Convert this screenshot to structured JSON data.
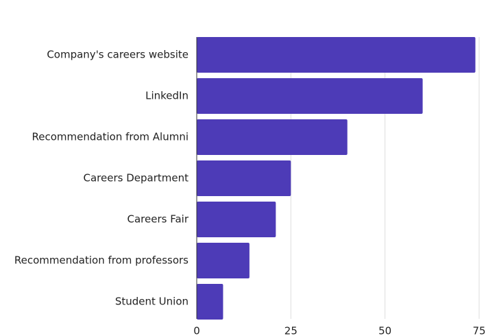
{
  "chart_data": {
    "type": "bar",
    "orientation": "horizontal",
    "categories": [
      "Company's careers website",
      "LinkedIn",
      "Recommendation from Alumni",
      "Careers Department",
      "Careers Fair",
      "Recommendation from professors",
      "Student Union"
    ],
    "values": [
      74,
      60,
      40,
      25,
      21,
      14,
      7
    ],
    "color": "#4d3bb7",
    "xlim": [
      0,
      75
    ],
    "xticks": [
      0,
      25,
      50,
      75
    ],
    "grid": true
  }
}
